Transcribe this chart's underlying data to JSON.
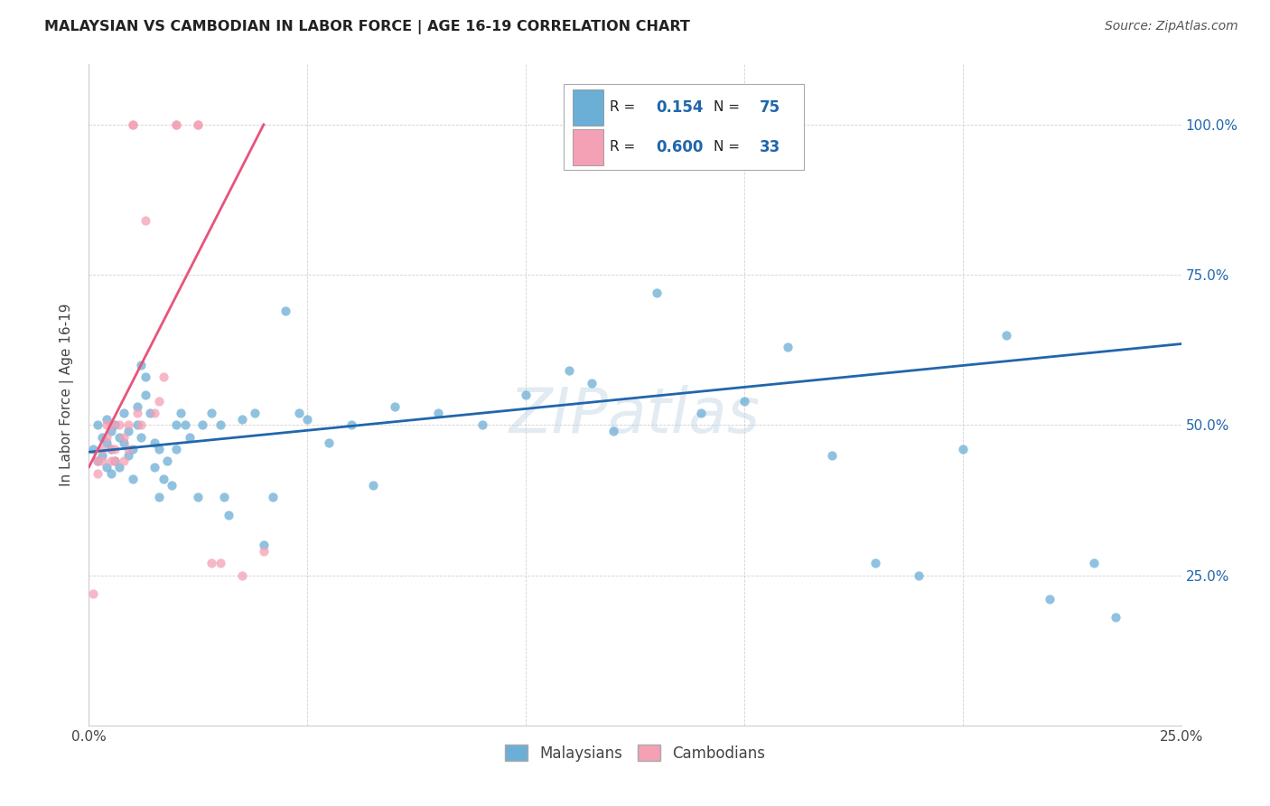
{
  "title": "MALAYSIAN VS CAMBODIAN IN LABOR FORCE | AGE 16-19 CORRELATION CHART",
  "source": "Source: ZipAtlas.com",
  "ylabel": "In Labor Force | Age 16-19",
  "xlim": [
    0.0,
    0.25
  ],
  "ylim": [
    0.0,
    1.1
  ],
  "xtick_vals": [
    0.0,
    0.05,
    0.1,
    0.15,
    0.2,
    0.25
  ],
  "ytick_vals": [
    0.0,
    0.25,
    0.5,
    0.75,
    1.0
  ],
  "ytick_labels_right": [
    "",
    "25.0%",
    "50.0%",
    "75.0%",
    "100.0%"
  ],
  "xtick_labels": [
    "0.0%",
    "",
    "",
    "",
    "",
    "25.0%"
  ],
  "watermark": "ZIPatlas",
  "blue_color": "#6baed6",
  "pink_color": "#f4a0b5",
  "blue_line_color": "#2166ac",
  "pink_line_color": "#e8537a",
  "R_malaysian": "0.154",
  "N_malaysian": "75",
  "R_cambodian": "0.600",
  "N_cambodian": "33",
  "mal_x": [
    0.001,
    0.002,
    0.002,
    0.003,
    0.003,
    0.004,
    0.004,
    0.004,
    0.005,
    0.005,
    0.005,
    0.006,
    0.006,
    0.007,
    0.007,
    0.008,
    0.008,
    0.009,
    0.009,
    0.01,
    0.01,
    0.011,
    0.011,
    0.012,
    0.012,
    0.013,
    0.013,
    0.014,
    0.015,
    0.015,
    0.016,
    0.016,
    0.017,
    0.018,
    0.019,
    0.02,
    0.02,
    0.021,
    0.022,
    0.023,
    0.025,
    0.026,
    0.028,
    0.03,
    0.031,
    0.032,
    0.035,
    0.038,
    0.04,
    0.042,
    0.045,
    0.048,
    0.05,
    0.055,
    0.06,
    0.065,
    0.07,
    0.08,
    0.09,
    0.1,
    0.11,
    0.115,
    0.12,
    0.13,
    0.14,
    0.15,
    0.16,
    0.17,
    0.18,
    0.19,
    0.2,
    0.21,
    0.22,
    0.23,
    0.235
  ],
  "mal_y": [
    0.46,
    0.5,
    0.44,
    0.48,
    0.45,
    0.43,
    0.51,
    0.47,
    0.49,
    0.42,
    0.46,
    0.5,
    0.44,
    0.48,
    0.43,
    0.47,
    0.52,
    0.45,
    0.49,
    0.41,
    0.46,
    0.5,
    0.53,
    0.48,
    0.6,
    0.55,
    0.58,
    0.52,
    0.47,
    0.43,
    0.46,
    0.38,
    0.41,
    0.44,
    0.4,
    0.5,
    0.46,
    0.52,
    0.5,
    0.48,
    0.38,
    0.5,
    0.52,
    0.5,
    0.38,
    0.35,
    0.51,
    0.52,
    0.3,
    0.38,
    0.69,
    0.52,
    0.51,
    0.47,
    0.5,
    0.4,
    0.53,
    0.52,
    0.5,
    0.55,
    0.59,
    0.57,
    0.49,
    0.72,
    0.52,
    0.54,
    0.63,
    0.45,
    0.27,
    0.25,
    0.46,
    0.65,
    0.21,
    0.27,
    0.18
  ],
  "cam_x": [
    0.001,
    0.002,
    0.002,
    0.003,
    0.003,
    0.004,
    0.004,
    0.005,
    0.005,
    0.005,
    0.006,
    0.006,
    0.007,
    0.008,
    0.008,
    0.009,
    0.009,
    0.01,
    0.01,
    0.011,
    0.012,
    0.013,
    0.015,
    0.016,
    0.017,
    0.02,
    0.02,
    0.025,
    0.025,
    0.028,
    0.03,
    0.035,
    0.04
  ],
  "cam_y": [
    0.22,
    0.42,
    0.44,
    0.46,
    0.44,
    0.48,
    0.5,
    0.46,
    0.5,
    0.44,
    0.44,
    0.46,
    0.5,
    0.48,
    0.44,
    0.46,
    0.5,
    1.0,
    1.0,
    0.52,
    0.5,
    0.84,
    0.52,
    0.54,
    0.58,
    1.0,
    1.0,
    1.0,
    1.0,
    0.27,
    0.27,
    0.25,
    0.29
  ]
}
